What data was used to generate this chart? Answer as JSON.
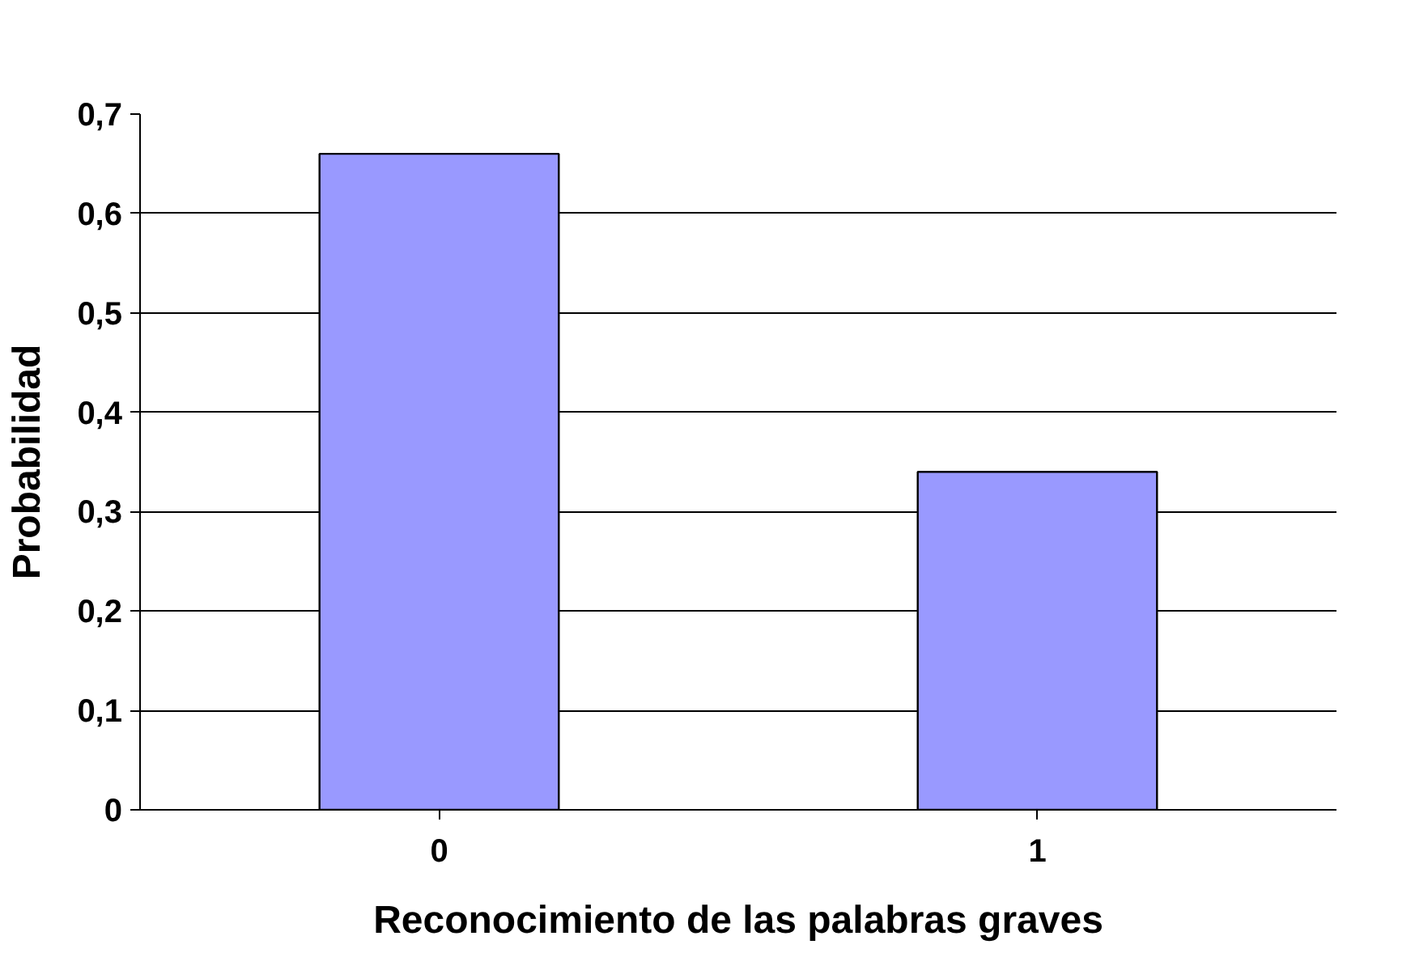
{
  "chart_data": {
    "type": "bar",
    "xlabel": "Reconocimiento de las palabras graves",
    "ylabel": "Probabilidad",
    "categories": [
      "0",
      "1"
    ],
    "values": [
      0.66,
      0.34
    ],
    "color": "#9999ff",
    "ylim": [
      0,
      0.7
    ],
    "yticks": [
      0,
      {
        "value": 0.1,
        "label": "0,1"
      },
      {
        "value": 0.2,
        "label": "0,2"
      },
      {
        "value": 0.3,
        "label": "0,3"
      },
      {
        "value": 0.4,
        "label": "0,4"
      },
      {
        "value": 0.5,
        "label": "0,5"
      },
      {
        "value": 0.6,
        "label": "0,6"
      },
      {
        "value": 0.7,
        "label": "0,7"
      }
    ],
    "grid": "y"
  }
}
